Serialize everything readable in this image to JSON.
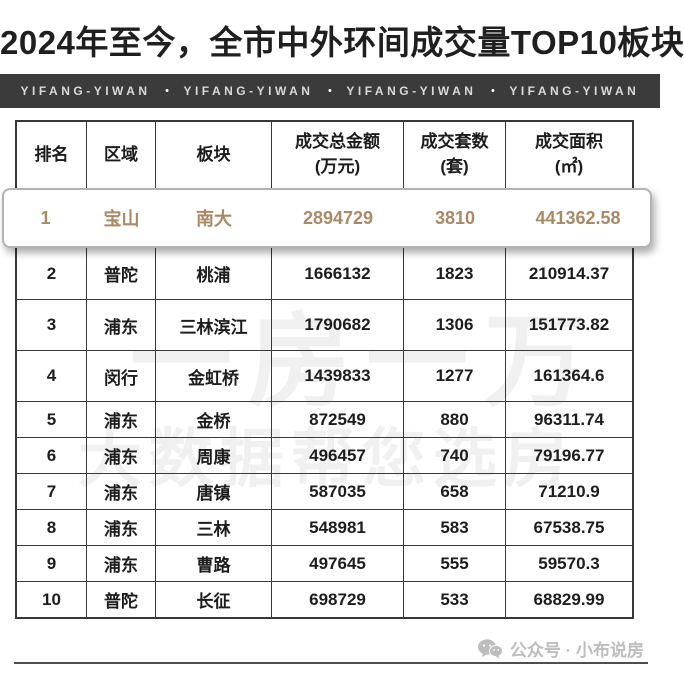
{
  "page": {
    "title": "2024年至今，全市中外环间成交量TOP10板块"
  },
  "banner": {
    "items": [
      "YIFANG-YIWAN",
      "YIFANG-YIWAN",
      "YIFANG-YIWAN",
      "YIFANG-YIWAN"
    ],
    "separator": "•"
  },
  "table": {
    "headers": [
      {
        "label": "排名",
        "sub": ""
      },
      {
        "label": "区域",
        "sub": ""
      },
      {
        "label": "板块",
        "sub": ""
      },
      {
        "label": "成交总金额",
        "sub": "(万元)"
      },
      {
        "label": "成交套数",
        "sub": "(套)"
      },
      {
        "label": "成交面积",
        "sub": "(㎡)"
      }
    ]
  },
  "chart_data": {
    "type": "table",
    "title": "2024年至今，全市中外环间成交量TOP10板块",
    "columns": [
      "排名",
      "区域",
      "板块",
      "成交总金额(万元)",
      "成交套数(套)",
      "成交面积(㎡)"
    ],
    "rows": [
      [
        "1",
        "宝山",
        "南大",
        "2894729",
        "3810",
        "441362.58"
      ],
      [
        "2",
        "普陀",
        "桃浦",
        "1666132",
        "1823",
        "210914.37"
      ],
      [
        "3",
        "浦东",
        "三林滨江",
        "1790682",
        "1306",
        "151773.82"
      ],
      [
        "4",
        "闵行",
        "金虹桥",
        "1439833",
        "1277",
        "161364.6"
      ],
      [
        "5",
        "浦东",
        "金桥",
        "872549",
        "880",
        "96311.74"
      ],
      [
        "6",
        "浦东",
        "周康",
        "496457",
        "740",
        "79196.77"
      ],
      [
        "7",
        "浦东",
        "唐镇",
        "587035",
        "658",
        "71210.9"
      ],
      [
        "8",
        "浦东",
        "三林",
        "548981",
        "583",
        "67538.75"
      ],
      [
        "9",
        "浦东",
        "曹路",
        "497645",
        "555",
        "59570.3"
      ],
      [
        "10",
        "普陀",
        "长征",
        "698729",
        "533",
        "68829.99"
      ]
    ],
    "highlight_row_index": 0
  },
  "watermarks": {
    "wm1": "一房一万",
    "wm2": "大数据帮您选房"
  },
  "footer": {
    "label": "公众号 · 小布说房"
  },
  "colors": {
    "highlight_text": "#a98a64",
    "banner_bg": "#3b3b3b",
    "table_border": "#383838",
    "footer_text": "#bdbdbd"
  }
}
